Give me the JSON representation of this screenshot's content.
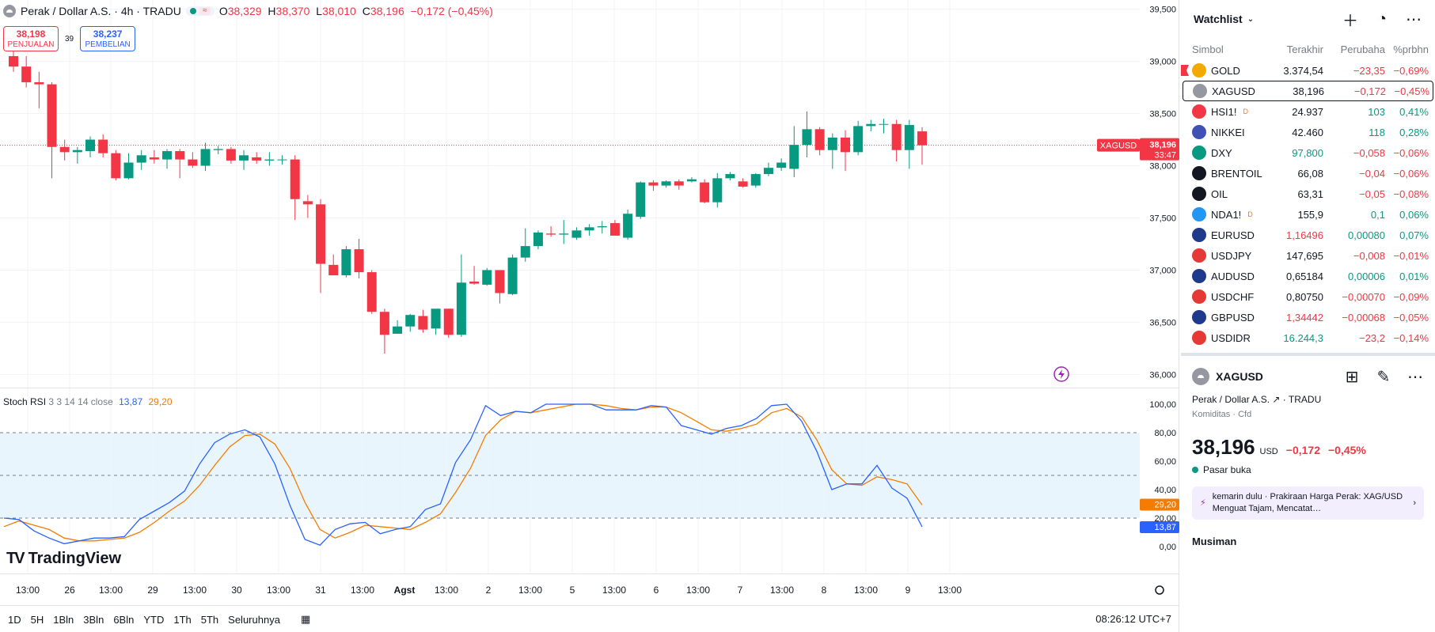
{
  "header": {
    "symbol_title": "Perak / Dollar A.S. · 4h · TRADU",
    "ohlc": [
      {
        "label": "O",
        "value": "38,329"
      },
      {
        "label": "H",
        "value": "38,370"
      },
      {
        "label": "L",
        "value": "38,010"
      },
      {
        "label": "C",
        "value": "38,196"
      }
    ],
    "change": "−0,172 (−0,45%)",
    "sell_price": "38,198",
    "sell_label": "PENJUALAN",
    "spread": "39",
    "buy_price": "38,237",
    "buy_label": "PEMBELIAN"
  },
  "price_axis": {
    "ticks": [
      "39,500",
      "39,000",
      "38,500",
      "38,000",
      "37,500",
      "37,000",
      "36,500",
      "36,000"
    ],
    "current_label": "XAGUSD",
    "current_price": "38,196",
    "countdown": "33:47"
  },
  "rsi": {
    "name": "Stoch RSI",
    "params": "3 3 14 14 close",
    "k_value": "13,87",
    "d_value": "29,20",
    "ticks": [
      "100,00",
      "80,00",
      "60,00",
      "40,00",
      "20,00",
      "0,00"
    ]
  },
  "time_axis": {
    "labels": [
      "13:00",
      "26",
      "13:00",
      "29",
      "13:00",
      "30",
      "13:00",
      "31",
      "13:00",
      "Agst",
      "13:00",
      "2",
      "13:00",
      "5",
      "13:00",
      "6",
      "13:00",
      "7",
      "13:00",
      "8",
      "13:00",
      "9",
      "13:00"
    ]
  },
  "logo_text": "TradingView",
  "bottom_bar": {
    "ranges": [
      "1D",
      "5H",
      "1Bln",
      "3Bln",
      "6Bln",
      "YTD",
      "1Th",
      "5Th",
      "Seluruhnya"
    ],
    "clock": "08:26:12 UTC+7"
  },
  "watchlist": {
    "title": "Watchlist",
    "columns": [
      "Simbol",
      "Terakhir",
      "Perubaha",
      "%prbhn"
    ],
    "rows": [
      {
        "symbol": "GOLD",
        "last": "3.374,54",
        "chg": "−23,35",
        "pct": "−0,69%",
        "dir": "neg",
        "last_color": "blk",
        "icon_color": "#f2a900",
        "icon": "icon-gold"
      },
      {
        "symbol": "XAGUSD",
        "last": "38,196",
        "chg": "−0,172",
        "pct": "−0,45%",
        "dir": "neg",
        "last_color": "blk",
        "icon_color": "#9598a1",
        "icon": "icon-silver"
      },
      {
        "symbol": "HSI1!",
        "sup": "D",
        "last": "24.937",
        "chg": "103",
        "pct": "0,41%",
        "dir": "pos",
        "last_color": "blk",
        "icon_color": "#f23645",
        "icon": "icon-hsi"
      },
      {
        "symbol": "NIKKEI",
        "last": "42.460",
        "chg": "118",
        "pct": "0,28%",
        "dir": "pos",
        "last_color": "blk",
        "icon_color": "#3f51b5",
        "icon": "icon-nikkei"
      },
      {
        "symbol": "DXY",
        "last": "97,800",
        "chg": "−0,058",
        "pct": "−0,06%",
        "dir": "neg",
        "last_color": "pos",
        "icon_color": "#089981",
        "icon": "icon-dollar"
      },
      {
        "symbol": "BRENTOIL",
        "last": "66,08",
        "chg": "−0,04",
        "pct": "−0,06%",
        "dir": "neg",
        "last_color": "blk",
        "icon_color": "#131722",
        "icon": "icon-oil-drop"
      },
      {
        "symbol": "OIL",
        "last": "63,31",
        "chg": "−0,05",
        "pct": "−0,08%",
        "dir": "neg",
        "last_color": "blk",
        "icon_color": "#131722",
        "icon": "icon-oil-drop"
      },
      {
        "symbol": "NDA1!",
        "sup": "D",
        "last": "155,9",
        "chg": "0,1",
        "pct": "0,06%",
        "dir": "pos",
        "last_color": "blk",
        "icon_color": "#2196f3",
        "icon": "icon-nda"
      },
      {
        "symbol": "EURUSD",
        "last": "1,16496",
        "chg": "0,00080",
        "pct": "0,07%",
        "dir": "pos",
        "last_color": "neg",
        "icon_color": "#1e3a8a",
        "icon": "icon-flag-eu"
      },
      {
        "symbol": "USDJPY",
        "last": "147,695",
        "chg": "−0,008",
        "pct": "−0,01%",
        "dir": "neg",
        "last_color": "blk",
        "icon_color": "#e53935",
        "icon": "icon-flag-us"
      },
      {
        "symbol": "AUDUSD",
        "last": "0,65184",
        "chg": "0,00006",
        "pct": "0,01%",
        "dir": "pos",
        "last_color": "blk",
        "icon_color": "#1e3a8a",
        "icon": "icon-flag-au"
      },
      {
        "symbol": "USDCHF",
        "last": "0,80750",
        "chg": "−0,00070",
        "pct": "−0,09%",
        "dir": "neg",
        "last_color": "blk",
        "icon_color": "#e53935",
        "icon": "icon-flag-us"
      },
      {
        "symbol": "GBPUSD",
        "last": "1,34442",
        "chg": "−0,00068",
        "pct": "−0,05%",
        "dir": "neg",
        "last_color": "neg",
        "icon_color": "#1e3a8a",
        "icon": "icon-flag-gb"
      },
      {
        "symbol": "USDIDR",
        "last": "16.244,3",
        "chg": "−23,2",
        "pct": "−0,14%",
        "dir": "neg",
        "last_color": "pos",
        "icon_color": "#e53935",
        "icon": "icon-flag-us"
      }
    ]
  },
  "detail": {
    "symbol": "XAGUSD",
    "name": "Perak / Dollar A.S.",
    "exchange": "TRADU",
    "category": "Komiditas · Cfd",
    "price": "38,196",
    "currency": "USD",
    "change": "−0,172",
    "change_pct": "−0,45%",
    "status": "Pasar buka",
    "news_time": "kemarin dulu",
    "news_title": "Prakiraan Harga Perak: XAG/USD Menguat Tajam, Mencatat…",
    "section": "Musiman"
  },
  "chart_data": {
    "type": "candlestick",
    "interval": "4h",
    "candles": [
      [
        39050,
        39120,
        38900,
        38950
      ],
      [
        38950,
        39050,
        38750,
        38800
      ],
      [
        38800,
        38900,
        38550,
        38780
      ],
      [
        38780,
        38800,
        37880,
        38180
      ],
      [
        38180,
        38250,
        38050,
        38130
      ],
      [
        38130,
        38180,
        38020,
        38150
      ],
      [
        38140,
        38280,
        38080,
        38250
      ],
      [
        38250,
        38300,
        38080,
        38120
      ],
      [
        38120,
        38150,
        37860,
        37880
      ],
      [
        37880,
        38120,
        37870,
        38030
      ],
      [
        38030,
        38150,
        37960,
        38100
      ],
      [
        38080,
        38150,
        38020,
        38060
      ],
      [
        38060,
        38160,
        37970,
        38140
      ],
      [
        38140,
        38160,
        37880,
        38060
      ],
      [
        38060,
        38130,
        37980,
        38000
      ],
      [
        38000,
        38220,
        37950,
        38160
      ],
      [
        38150,
        38190,
        38110,
        38160
      ],
      [
        38160,
        38180,
        38020,
        38050
      ],
      [
        38050,
        38150,
        37960,
        38100
      ],
      [
        38080,
        38130,
        38020,
        38050
      ],
      [
        38050,
        38130,
        38000,
        38060
      ],
      [
        38060,
        38100,
        38010,
        38060
      ],
      [
        38060,
        38100,
        37480,
        37680
      ],
      [
        37660,
        37720,
        37500,
        37630
      ],
      [
        37630,
        37680,
        36780,
        37060
      ],
      [
        37050,
        37150,
        36950,
        36950
      ],
      [
        36950,
        37230,
        36930,
        37200
      ],
      [
        37200,
        37300,
        36920,
        36980
      ],
      [
        36980,
        37000,
        36580,
        36600
      ],
      [
        36600,
        36630,
        36200,
        36380
      ],
      [
        36390,
        36520,
        36400,
        36460
      ],
      [
        36460,
        36580,
        36410,
        36570
      ],
      [
        36560,
        36620,
        36400,
        36430
      ],
      [
        36440,
        36620,
        36380,
        36630
      ],
      [
        36630,
        36630,
        36350,
        36380
      ],
      [
        36380,
        37150,
        36360,
        36880
      ],
      [
        36890,
        37040,
        36860,
        36870
      ],
      [
        36860,
        37020,
        36850,
        37000
      ],
      [
        37000,
        37000,
        36680,
        36780
      ],
      [
        36770,
        37150,
        36760,
        37120
      ],
      [
        37120,
        37400,
        37080,
        37230
      ],
      [
        37230,
        37380,
        37200,
        37360
      ],
      [
        37350,
        37420,
        37320,
        37340
      ],
      [
        37340,
        37480,
        37250,
        37350
      ],
      [
        37310,
        37410,
        37290,
        37380
      ],
      [
        37380,
        37440,
        37330,
        37410
      ],
      [
        37410,
        37470,
        37350,
        37420
      ],
      [
        37450,
        37480,
        37350,
        37330
      ],
      [
        37310,
        37580,
        37290,
        37540
      ],
      [
        37510,
        37850,
        37490,
        37840
      ],
      [
        37840,
        37860,
        37760,
        37810
      ],
      [
        37810,
        37860,
        37790,
        37850
      ],
      [
        37850,
        37870,
        37770,
        37810
      ],
      [
        37850,
        37890,
        37840,
        37870
      ],
      [
        37840,
        37870,
        37640,
        37650
      ],
      [
        37650,
        37930,
        37600,
        37880
      ],
      [
        37880,
        37940,
        37860,
        37920
      ],
      [
        37850,
        37880,
        37790,
        37800
      ],
      [
        37810,
        37930,
        37790,
        37920
      ],
      [
        37920,
        38030,
        37900,
        37980
      ],
      [
        37980,
        38070,
        37950,
        38030
      ],
      [
        37970,
        38380,
        37890,
        38200
      ],
      [
        38200,
        38520,
        38080,
        38350
      ],
      [
        38350,
        38370,
        38100,
        38150
      ],
      [
        38150,
        38310,
        37970,
        38270
      ],
      [
        38270,
        38340,
        37950,
        38130
      ],
      [
        38130,
        38430,
        38100,
        38380
      ],
      [
        38380,
        38440,
        38330,
        38400
      ],
      [
        38400,
        38450,
        38310,
        38400
      ],
      [
        38400,
        38440,
        38040,
        38150
      ],
      [
        38150,
        38440,
        37970,
        38390
      ],
      [
        38329,
        38370,
        38010,
        38196
      ]
    ],
    "stoch_k": [
      20,
      19,
      11,
      6,
      2,
      4,
      6,
      6,
      7,
      19,
      25,
      31,
      39,
      58,
      73,
      79,
      82,
      77,
      58,
      29,
      5,
      1,
      12,
      16,
      17,
      9,
      12,
      14,
      26,
      30,
      59,
      75,
      99,
      92,
      95,
      94,
      100,
      100,
      100,
      100,
      96,
      96,
      96,
      99,
      98,
      85,
      82,
      79,
      83,
      85,
      90,
      99,
      100,
      88,
      67,
      40,
      44,
      44,
      57,
      41,
      34,
      13.87
    ],
    "stoch_d": [
      14,
      18,
      15,
      12,
      6,
      4,
      4,
      5,
      6,
      10,
      17,
      25,
      32,
      43,
      57,
      70,
      78,
      79,
      72,
      55,
      31,
      12,
      6,
      10,
      15,
      14,
      13,
      12,
      17,
      23,
      38,
      55,
      78,
      89,
      95,
      94,
      96,
      98,
      100,
      100,
      99,
      97,
      96,
      98,
      98,
      94,
      88,
      82,
      81,
      83,
      86,
      94,
      97,
      91,
      75,
      54,
      44,
      43,
      49,
      47,
      44,
      29.2
    ],
    "price_range": [
      35950,
      39550
    ],
    "rsi_range": [
      0,
      100
    ],
    "rsi_bands": [
      80,
      50,
      20
    ]
  }
}
